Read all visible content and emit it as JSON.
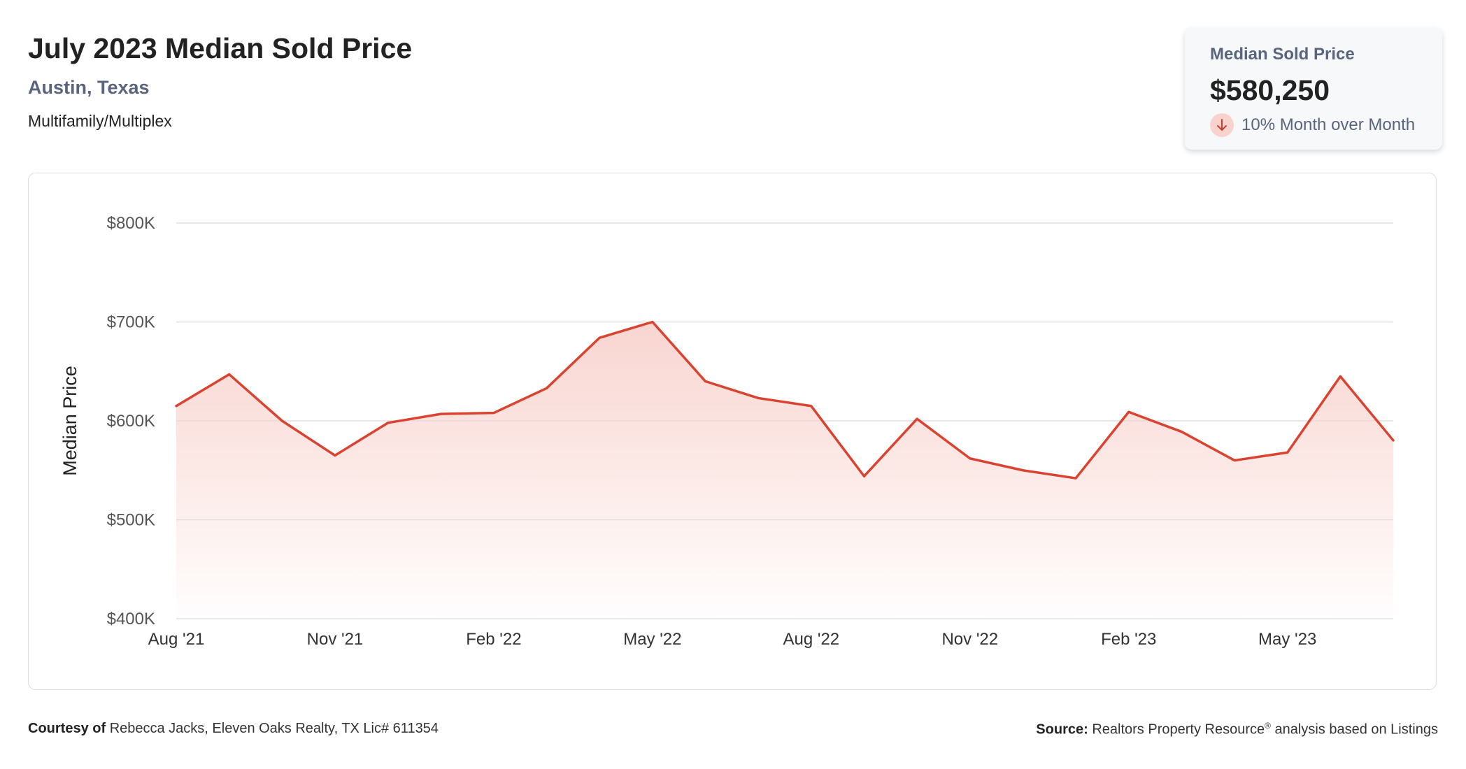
{
  "header": {
    "title": "July 2023 Median Sold Price",
    "location": "Austin, Texas",
    "property_type": "Multifamily/Multiplex"
  },
  "stat_card": {
    "label": "Median Sold Price",
    "value": "$580,250",
    "change_text": "10% Month over Month",
    "change_direction_icon": "arrow-down-icon"
  },
  "colors": {
    "line": "#d9432f",
    "fill_top": "#f8d3ce",
    "grid": "#dde1e7",
    "arrow": "#c9402e"
  },
  "chart_data": {
    "type": "area",
    "ylabel": "Median Price",
    "xlabel": "",
    "ylim": [
      400000,
      800000
    ],
    "y_ticks": [
      400000,
      500000,
      600000,
      700000,
      800000
    ],
    "y_tick_labels": [
      "$400K",
      "$500K",
      "$600K",
      "$700K",
      "$800K"
    ],
    "x_tick_labels": [
      "Aug '21",
      "Nov '21",
      "Feb '22",
      "May '22",
      "Aug '22",
      "Nov '22",
      "Feb '23",
      "May '23"
    ],
    "x_tick_indices": [
      0,
      3,
      6,
      9,
      12,
      15,
      18,
      21
    ],
    "grid": true,
    "x": [
      "Aug '21",
      "Sep '21",
      "Oct '21",
      "Nov '21",
      "Dec '21",
      "Jan '22",
      "Feb '22",
      "Mar '22",
      "Apr '22",
      "May '22",
      "Jun '22",
      "Jul '22",
      "Aug '22",
      "Sep '22",
      "Oct '22",
      "Nov '22",
      "Dec '22",
      "Jan '23",
      "Feb '23",
      "Mar '23",
      "Apr '23",
      "May '23",
      "Jun '23",
      "Jul '23"
    ],
    "series": [
      {
        "values": [
          615000,
          647000,
          600000,
          565000,
          598000,
          607000,
          608000,
          633000,
          684000,
          700000,
          640000,
          623000,
          615000,
          544000,
          602000,
          562000,
          550000,
          542000,
          609000,
          589000,
          560000,
          568000,
          645000,
          580250
        ]
      }
    ]
  },
  "footer": {
    "courtesy_label": "Courtesy of",
    "courtesy_text": "Rebecca Jacks, Eleven Oaks Realty, TX Lic# 611354",
    "source_label": "Source:",
    "source_text_1": "Realtors Property Resource",
    "source_sup": "®",
    "source_text_2": "analysis based on Listings"
  }
}
